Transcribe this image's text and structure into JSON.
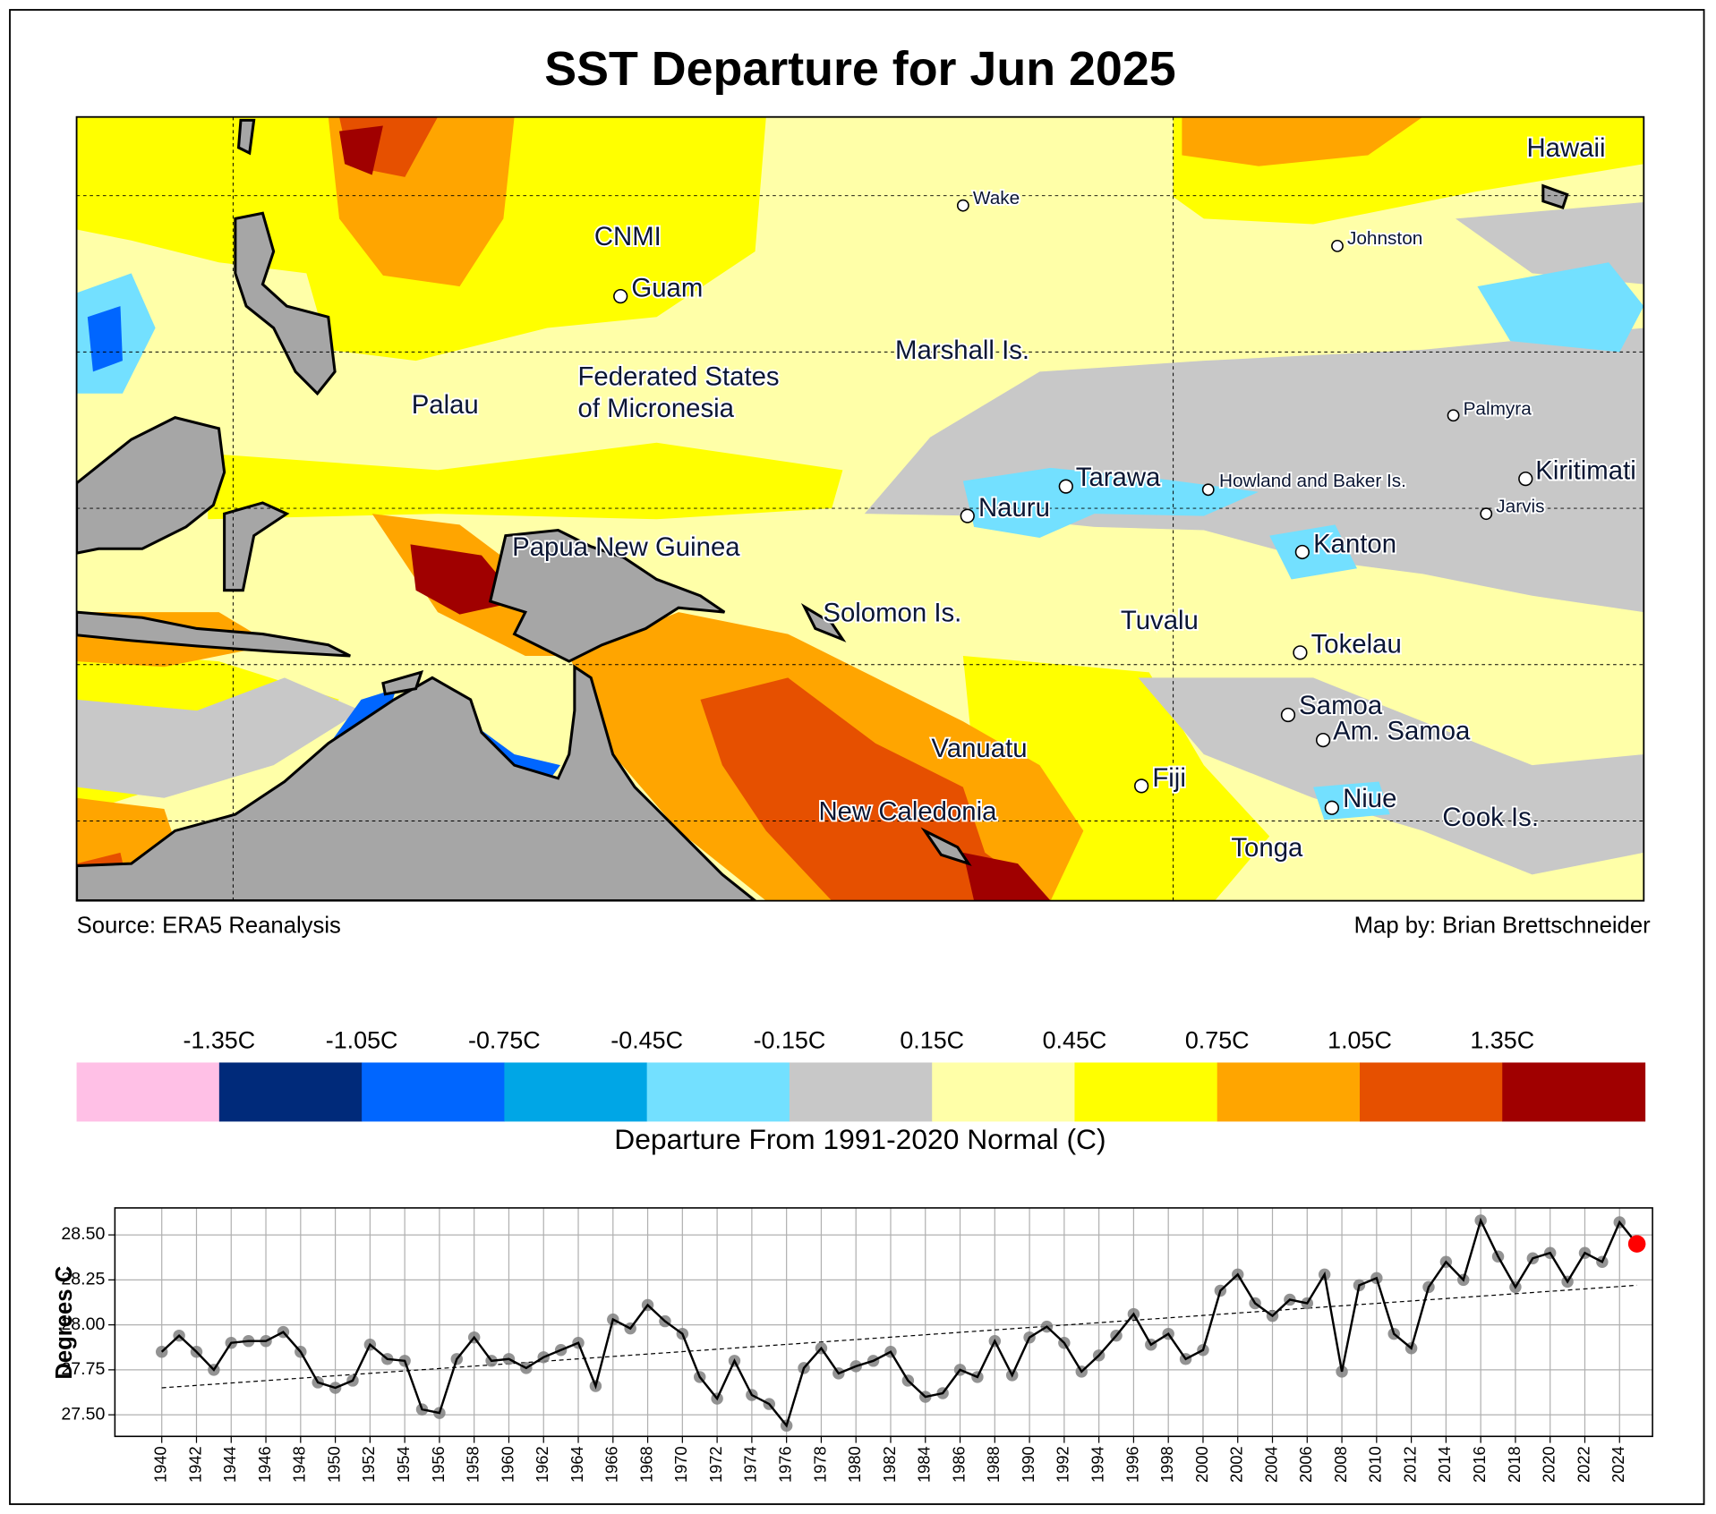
{
  "title": "SST Departure for Jun 2025",
  "map": {
    "places": [
      "Hawaii",
      "Wake",
      "CNMI",
      "Johnston",
      "Guam",
      "Marshall Is.",
      "Federated States\nof Micronesia",
      "Palau",
      "Palmyra",
      "Kiritimati",
      "Tarawa",
      "Howland and Baker Is.",
      "Nauru",
      "Jarvis",
      "Papua New Guinea",
      "Kanton",
      "Solomon Is.",
      "Tuvalu",
      "Tokelau",
      "Samoa",
      "Am. Samoa",
      "Vanuatu",
      "Fiji",
      "Niue",
      "Cook Is.",
      "New Caledonia",
      "Tonga"
    ],
    "source": "Source: ERA5 Reanalysis",
    "credit": "Map by: Brian Brettschneider"
  },
  "colorbar": {
    "label": "Departure From 1991-2020 Normal (C)",
    "lim": [
      -1.65,
      1.65
    ],
    "ticks": [
      {
        "value": -1.35,
        "label": "-1.35C"
      },
      {
        "value": -1.05,
        "label": "-1.05C"
      },
      {
        "value": -0.75,
        "label": "-0.75C"
      },
      {
        "value": -0.45,
        "label": "-0.45C"
      },
      {
        "value": -0.15,
        "label": "-0.15C"
      },
      {
        "value": 0.15,
        "label": "0.15C"
      },
      {
        "value": 0.45,
        "label": "0.45C"
      },
      {
        "value": 0.75,
        "label": "0.75C"
      },
      {
        "value": 1.05,
        "label": "1.05C"
      },
      {
        "value": 1.35,
        "label": "1.35C"
      }
    ],
    "colors": [
      "#ffc0e6",
      "#002a7a",
      "#0066ff",
      "#00a6e6",
      "#73e0ff",
      "#c8c8c8",
      "#ffffa8",
      "#ffff00",
      "#ffa500",
      "#e65000",
      "#a00000"
    ]
  },
  "chart_data": {
    "type": "line",
    "ylabel": "Degrees C",
    "x": [
      1940,
      1941,
      1942,
      1943,
      1944,
      1945,
      1946,
      1947,
      1948,
      1949,
      1950,
      1951,
      1952,
      1953,
      1954,
      1955,
      1956,
      1957,
      1958,
      1959,
      1960,
      1961,
      1962,
      1963,
      1964,
      1965,
      1966,
      1967,
      1968,
      1969,
      1970,
      1971,
      1972,
      1973,
      1974,
      1975,
      1976,
      1977,
      1978,
      1979,
      1980,
      1981,
      1982,
      1983,
      1984,
      1985,
      1986,
      1987,
      1988,
      1989,
      1990,
      1991,
      1992,
      1993,
      1994,
      1995,
      1996,
      1997,
      1998,
      1999,
      2000,
      2001,
      2002,
      2003,
      2004,
      2005,
      2006,
      2007,
      2008,
      2009,
      2010,
      2011,
      2012,
      2013,
      2014,
      2015,
      2016,
      2017,
      2018,
      2019,
      2020,
      2021,
      2022,
      2023,
      2024,
      2025
    ],
    "series": [
      {
        "color": "#000000",
        "marker_color": "#808080",
        "values": [
          27.85,
          27.94,
          27.85,
          27.75,
          27.9,
          27.91,
          27.91,
          27.96,
          27.85,
          27.68,
          27.65,
          27.69,
          27.89,
          27.81,
          27.8,
          27.53,
          27.51,
          27.81,
          27.93,
          27.8,
          27.81,
          27.76,
          27.82,
          27.86,
          27.9,
          27.66,
          28.03,
          27.98,
          28.11,
          28.02,
          27.95,
          27.71,
          27.59,
          27.8,
          27.61,
          27.56,
          27.44,
          27.76,
          27.87,
          27.73,
          27.77,
          27.8,
          27.85,
          27.69,
          27.6,
          27.62,
          27.75,
          27.71,
          27.91,
          27.72,
          27.93,
          27.99,
          27.9,
          27.74,
          27.83,
          27.94,
          28.06,
          27.89,
          27.95,
          27.81,
          27.86,
          28.19,
          28.28,
          28.12,
          28.05,
          28.14,
          28.12,
          28.28,
          27.74,
          28.22,
          28.26,
          27.95,
          27.87,
          28.21,
          28.35,
          28.25,
          28.58,
          28.38,
          28.21,
          28.37,
          28.4,
          28.24,
          28.4,
          28.35,
          28.57,
          28.45
        ]
      }
    ],
    "highlight_color": "#ff0000",
    "trend": {
      "x": [
        1940,
        2025
      ],
      "values": [
        27.65,
        28.22
      ]
    },
    "xlim": [
      1937.3,
      2025.9
    ],
    "ylim": [
      27.38,
      28.65
    ],
    "xticks": [
      1940,
      1942,
      1944,
      1946,
      1948,
      1950,
      1952,
      1954,
      1956,
      1958,
      1960,
      1962,
      1964,
      1966,
      1968,
      1970,
      1972,
      1974,
      1976,
      1978,
      1980,
      1982,
      1984,
      1986,
      1988,
      1990,
      1992,
      1994,
      1996,
      1998,
      2000,
      2002,
      2004,
      2006,
      2008,
      2010,
      2012,
      2014,
      2016,
      2018,
      2020,
      2022,
      2024
    ],
    "yticks": [
      {
        "value": 27.5,
        "label": "27.50"
      },
      {
        "value": 27.75,
        "label": "27.75"
      },
      {
        "value": 28,
        "label": "28.00"
      },
      {
        "value": 28.25,
        "label": "28.25"
      },
      {
        "value": 28.5,
        "label": "28.50"
      }
    ],
    "grid": true
  }
}
